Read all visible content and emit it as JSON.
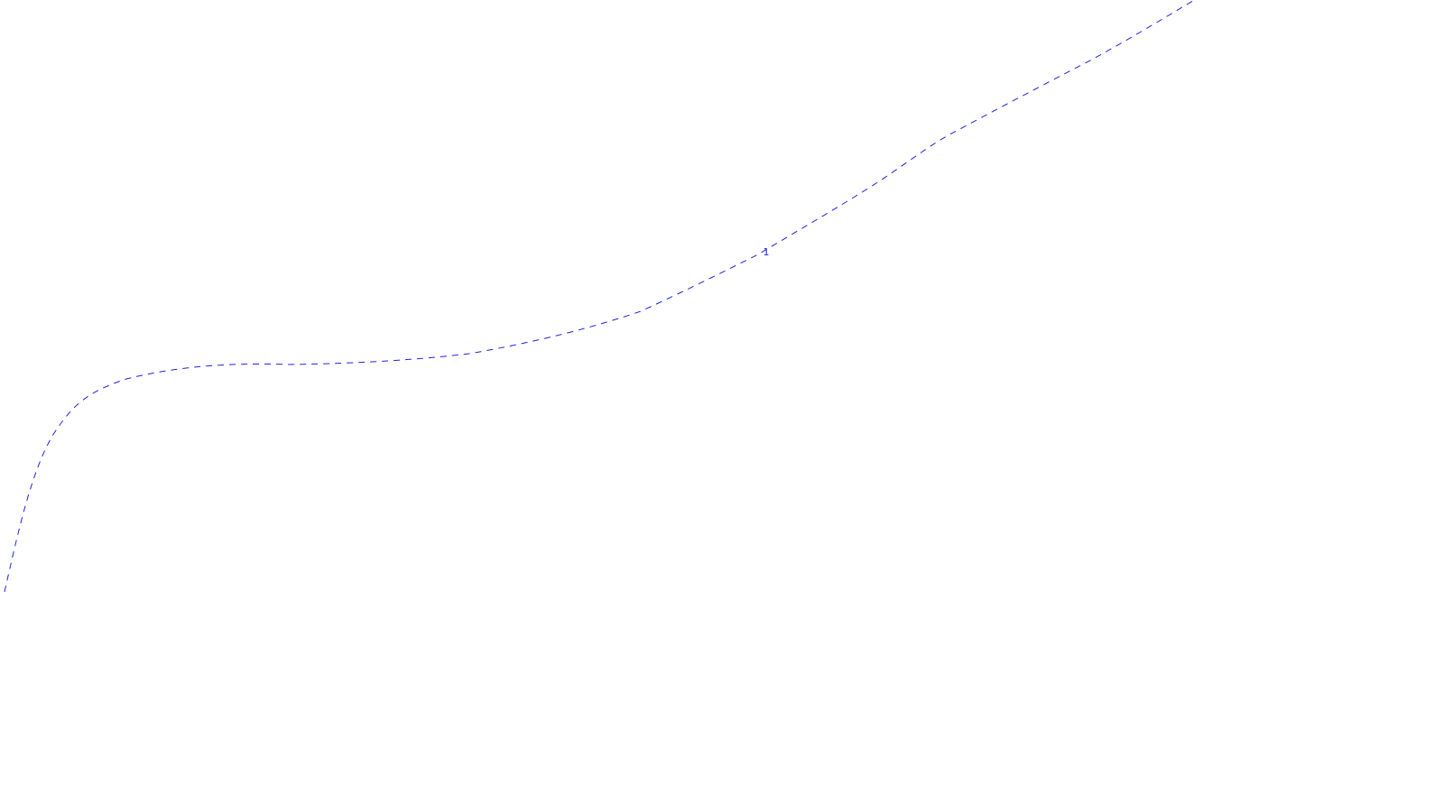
{
  "map": {
    "contour": {
      "label": "1",
      "color": "#2222dd"
    }
  }
}
